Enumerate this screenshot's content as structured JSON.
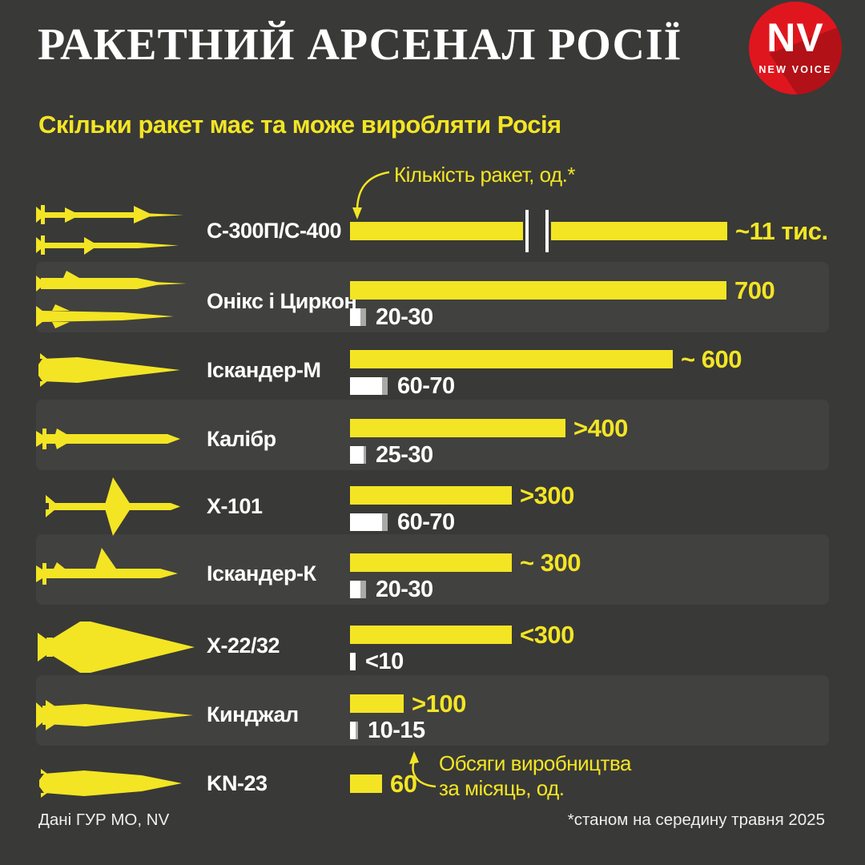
{
  "header": {
    "title": "РАКЕТНИЙ АРСЕНАЛ РОСІЇ",
    "logo": {
      "initials": "NV",
      "name": "NEW VOICE"
    }
  },
  "subtitle": "Скільки ракет має та може виробляти Росія",
  "annotations": {
    "quantity": "Кількість ракет, од.*",
    "production_line1": "Обсяги виробництва",
    "production_line2": "за місяць, од."
  },
  "footer": {
    "source": "Дані ГУР МО, NV",
    "note": "*станом на середину травня 2025"
  },
  "colors": {
    "yellow": "#f3e524",
    "background": "#393937",
    "logo_red": "#e0161f",
    "white": "#ffffff",
    "production_gray": "#a9a9a7"
  },
  "chart_data": {
    "type": "bar",
    "unit": "од.",
    "quantity_series_name": "Кількість ракет, од.*",
    "production_series_name": "Обсяги виробництва за місяць, од.",
    "categories": [
      "С-300П/С-400",
      "Онікс і Циркон",
      "Іскандер-М",
      "Калібр",
      "Х-101",
      "Іскандер-К",
      "Х-22/32",
      "Кинджал",
      "KN-23"
    ],
    "rows": [
      {
        "name": "С-300П/С-400",
        "icon": "s300",
        "qty": 11000,
        "qty_label": "~11 тис.",
        "broken": true
      },
      {
        "name": "Онікс і Циркон",
        "icon": "oniks",
        "qty": 700,
        "qty_label": "700",
        "prod_min": 20,
        "prod_max": 30,
        "prod_label": "20-30"
      },
      {
        "name": "Іскандер-М",
        "icon": "iskander-m",
        "qty": 600,
        "qty_label": "~ 600",
        "prod_min": 60,
        "prod_max": 70,
        "prod_label": "60-70"
      },
      {
        "name": "Калібр",
        "icon": "kalibr",
        "qty": 400,
        "qty_label": ">400",
        "prod_min": 25,
        "prod_max": 30,
        "prod_label": "25-30"
      },
      {
        "name": "Х-101",
        "icon": "x101",
        "qty": 300,
        "qty_label": ">300",
        "prod_min": 60,
        "prod_max": 70,
        "prod_label": "60-70"
      },
      {
        "name": "Іскандер-К",
        "icon": "iskander-k",
        "qty": 300,
        "qty_label": "~ 300",
        "prod_min": 20,
        "prod_max": 30,
        "prod_label": "20-30"
      },
      {
        "name": "Х-22/32",
        "icon": "x22",
        "qty": 300,
        "qty_label": "<300",
        "prod_min": 10,
        "prod_max": 10,
        "prod_label": "<10"
      },
      {
        "name": "Кинджал",
        "icon": "kinzhal",
        "qty": 100,
        "qty_label": ">100",
        "prod_min": 10,
        "prod_max": 15,
        "prod_label": "10-15"
      },
      {
        "name": "KN-23",
        "icon": "kn23",
        "qty": 60,
        "qty_label": "60"
      }
    ]
  }
}
